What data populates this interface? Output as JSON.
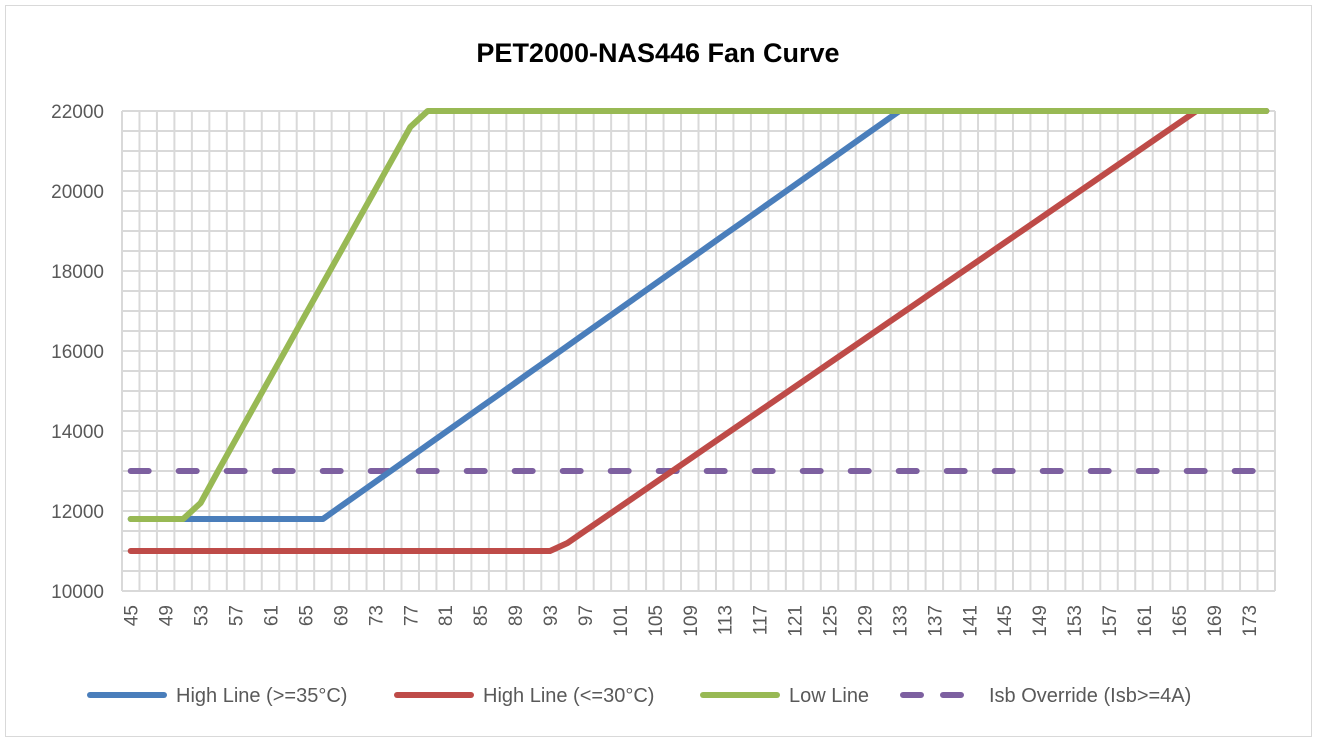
{
  "chart_data": {
    "type": "line",
    "title": "PET2000-NAS446 Fan Curve",
    "xlabel": "",
    "ylabel": "",
    "ylim": [
      10000,
      22000
    ],
    "yticks": [
      10000,
      12000,
      14000,
      16000,
      18000,
      20000,
      22000
    ],
    "ytick_labels": [
      "10000",
      "12000",
      "14000",
      "16000",
      "18000",
      "20000",
      "22000"
    ],
    "x": [
      45,
      47,
      49,
      51,
      53,
      55,
      57,
      59,
      61,
      63,
      65,
      67,
      69,
      71,
      73,
      75,
      77,
      79,
      81,
      83,
      85,
      87,
      89,
      91,
      93,
      95,
      97,
      99,
      101,
      103,
      105,
      107,
      109,
      111,
      113,
      115,
      117,
      119,
      121,
      123,
      125,
      127,
      129,
      131,
      133,
      135,
      137,
      139,
      141,
      143,
      145,
      147,
      149,
      151,
      153,
      155,
      157,
      159,
      161,
      163,
      165,
      167,
      169,
      171,
      173,
      175
    ],
    "xtick_labels": [
      "45",
      "49",
      "53",
      "57",
      "61",
      "65",
      "69",
      "73",
      "77",
      "81",
      "85",
      "89",
      "93",
      "97",
      "101",
      "105",
      "109",
      "113",
      "117",
      "121",
      "125",
      "129",
      "133",
      "137",
      "141",
      "145",
      "149",
      "153",
      "157",
      "161",
      "165",
      "169",
      "173"
    ],
    "grid": true,
    "legend_position": "bottom",
    "series": [
      {
        "name": "High Line (>=35°C)",
        "color": "#4a7ebb",
        "dashed": false,
        "values": [
          11800,
          11800,
          11800,
          11800,
          11800,
          11800,
          11800,
          11800,
          11800,
          11800,
          11800,
          11800,
          12109,
          12418,
          12727,
          13036,
          13345,
          13655,
          13964,
          14273,
          14582,
          14891,
          15200,
          15509,
          15818,
          16127,
          16436,
          16745,
          17055,
          17364,
          17673,
          17982,
          18291,
          18600,
          18909,
          19218,
          19527,
          19836,
          20145,
          20455,
          20764,
          21073,
          21382,
          21691,
          22000,
          22000,
          22000,
          22000,
          22000,
          22000,
          22000,
          22000,
          22000,
          22000,
          22000,
          22000,
          22000,
          22000,
          22000,
          22000,
          22000,
          22000,
          22000,
          22000,
          22000,
          22000
        ]
      },
      {
        "name": "High Line (<=30°C)",
        "color": "#be4b48",
        "dashed": false,
        "values": [
          11000,
          11000,
          11000,
          11000,
          11000,
          11000,
          11000,
          11000,
          11000,
          11000,
          11000,
          11000,
          11000,
          11000,
          11000,
          11000,
          11000,
          11000,
          11000,
          11000,
          11000,
          11000,
          11000,
          11000,
          11000,
          11200,
          11500,
          11800,
          12100,
          12400,
          12700,
          13000,
          13300,
          13600,
          13900,
          14200,
          14500,
          14800,
          15100,
          15400,
          15700,
          16000,
          16300,
          16600,
          16900,
          17200,
          17500,
          17800,
          18100,
          18400,
          18700,
          19000,
          19300,
          19600,
          19900,
          20200,
          20500,
          20800,
          21100,
          21400,
          21700,
          22000,
          22000,
          22000,
          22000,
          22000
        ]
      },
      {
        "name": "Low Line",
        "color": "#98b954",
        "dashed": false,
        "values": [
          11800,
          11800,
          11800,
          11800,
          12200,
          13000,
          13782,
          14564,
          15345,
          16127,
          16909,
          17691,
          18473,
          19255,
          20036,
          20818,
          21600,
          22000,
          22000,
          22000,
          22000,
          22000,
          22000,
          22000,
          22000,
          22000,
          22000,
          22000,
          22000,
          22000,
          22000,
          22000,
          22000,
          22000,
          22000,
          22000,
          22000,
          22000,
          22000,
          22000,
          22000,
          22000,
          22000,
          22000,
          22000,
          22000,
          22000,
          22000,
          22000,
          22000,
          22000,
          22000,
          22000,
          22000,
          22000,
          22000,
          22000,
          22000,
          22000,
          22000,
          22000,
          22000,
          22000,
          22000,
          22000,
          22000
        ]
      },
      {
        "name": "Isb Override (Isb>=4A)",
        "color": "#7d60a0",
        "dashed": true,
        "values": [
          13000,
          13000,
          13000,
          13000,
          13000,
          13000,
          13000,
          13000,
          13000,
          13000,
          13000,
          13000,
          13000,
          13000,
          13000,
          13000,
          13000,
          13000,
          13000,
          13000,
          13000,
          13000,
          13000,
          13000,
          13000,
          13000,
          13000,
          13000,
          13000,
          13000,
          13000,
          13000,
          13000,
          13000,
          13000,
          13000,
          13000,
          13000,
          13000,
          13000,
          13000,
          13000,
          13000,
          13000,
          13000,
          13000,
          13000,
          13000,
          13000,
          13000,
          13000,
          13000,
          13000,
          13000,
          13000,
          13000,
          13000,
          13000,
          13000,
          13000,
          13000,
          13000,
          13000,
          13000,
          13000,
          13000
        ]
      }
    ]
  }
}
